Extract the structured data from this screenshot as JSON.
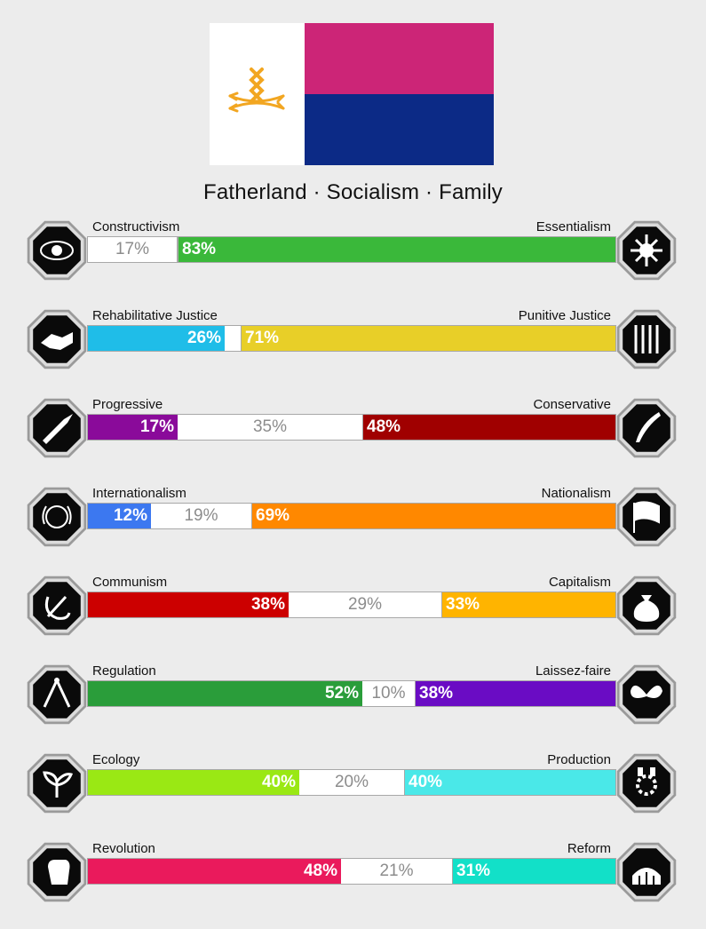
{
  "flag": {
    "top_color": "#cc2577",
    "bottom_color": "#0c2a86",
    "symbol_color": "#f2a621",
    "symbol_icon": "crossed-arrows-emblem-icon"
  },
  "slogan": "Fatherland · Socialism · Family",
  "axes": [
    {
      "left_label": "Constructivism",
      "right_label": "Essentialism",
      "left_value": 17,
      "middle_value": 0,
      "right_value": 83,
      "left_text": "17%",
      "middle_text": "",
      "right_text": "83%",
      "left_color": "#ffffff",
      "right_color": "#3ab83a",
      "left_text_color": "#8c8c8c",
      "right_text_color": "#ffffff",
      "left_icon": "eye-icon",
      "right_icon": "flower-icon"
    },
    {
      "left_label": "Rehabilitative Justice",
      "right_label": "Punitive Justice",
      "left_value": 26,
      "middle_value": 3,
      "right_value": 71,
      "left_text": "26%",
      "middle_text": "",
      "right_text": "71%",
      "left_color": "#1fbde8",
      "right_color": "#e8cf28",
      "left_text_color": "#ffffff",
      "right_text_color": "#ffffff",
      "left_icon": "handshake-icon",
      "right_icon": "prison-bars-icon"
    },
    {
      "left_label": "Progressive",
      "right_label": "Conservative",
      "left_value": 17,
      "middle_value": 35,
      "right_value": 48,
      "left_text": "17%",
      "middle_text": "35%",
      "right_text": "48%",
      "left_color": "#8a0a9a",
      "right_color": "#a00000",
      "left_text_color": "#ffffff",
      "right_text_color": "#ffffff",
      "left_icon": "rocket-icon",
      "right_icon": "quill-icon"
    },
    {
      "left_label": "Internationalism",
      "right_label": "Nationalism",
      "left_value": 12,
      "middle_value": 19,
      "right_value": 69,
      "left_text": "12%",
      "middle_text": "19%",
      "right_text": "69%",
      "left_color": "#3c78f0",
      "right_color": "#ff8800",
      "left_text_color": "#ffffff",
      "right_text_color": "#ffffff",
      "left_icon": "globe-laurel-icon",
      "right_icon": "waving-flag-icon"
    },
    {
      "left_label": "Communism",
      "right_label": "Capitalism",
      "left_value": 38,
      "middle_value": 29,
      "right_value": 33,
      "left_text": "38%",
      "middle_text": "29%",
      "right_text": "33%",
      "left_color": "#cc0000",
      "right_color": "#ffb400",
      "left_text_color": "#ffffff",
      "right_text_color": "#ffffff",
      "left_icon": "hammer-sickle-icon",
      "right_icon": "money-bag-icon"
    },
    {
      "left_label": "Regulation",
      "right_label": "Laissez-faire",
      "left_value": 52,
      "middle_value": 10,
      "right_value": 38,
      "left_text": "52%",
      "middle_text": "10%",
      "right_text": "38%",
      "left_color": "#2a9d3a",
      "right_color": "#6a0cc4",
      "left_text_color": "#ffffff",
      "right_text_color": "#ffffff",
      "left_icon": "ruler-compass-icon",
      "right_icon": "butterfly-icon"
    },
    {
      "left_label": "Ecology",
      "right_label": "Production",
      "left_value": 40,
      "middle_value": 20,
      "right_value": 40,
      "left_text": "40%",
      "middle_text": "20%",
      "right_text": "40%",
      "left_color": "#9ae814",
      "right_color": "#4ae8e8",
      "left_text_color": "#ffffff",
      "right_text_color": "#ffffff",
      "left_icon": "sprout-icon",
      "right_icon": "gear-factory-icon"
    },
    {
      "left_label": "Revolution",
      "right_label": "Reform",
      "left_value": 48,
      "middle_value": 21,
      "right_value": 31,
      "left_text": "48%",
      "middle_text": "21%",
      "right_text": "31%",
      "left_color": "#ea1a5c",
      "right_color": "#12e0c8",
      "left_text_color": "#ffffff",
      "right_text_color": "#ffffff",
      "left_icon": "fist-icon",
      "right_icon": "parliament-icon"
    }
  ]
}
